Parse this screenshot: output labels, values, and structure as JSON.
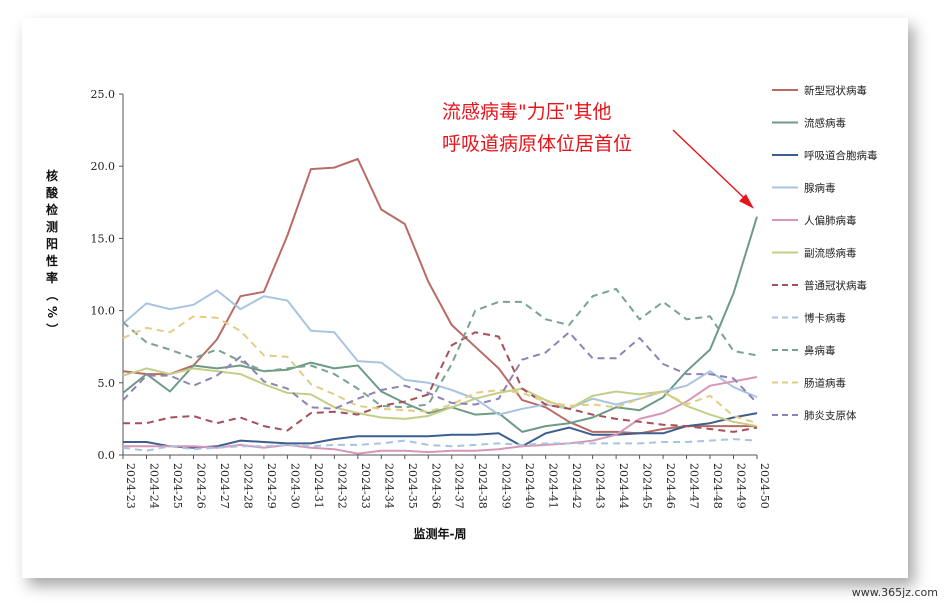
{
  "chart_data": {
    "type": "line",
    "title": "",
    "xlabel": "监测年-周",
    "ylabel": "核酸检测阳性率（%）",
    "ylim": [
      0,
      25
    ],
    "yticks": [
      "0.0",
      "5.0",
      "10.0",
      "15.0",
      "20.0",
      "25.0"
    ],
    "grid": false,
    "legend_position": "right",
    "categories": [
      "2024-23",
      "2024-24",
      "2024-25",
      "2024-26",
      "2024-27",
      "2024-28",
      "2024-29",
      "2024-30",
      "2024-31",
      "2024-32",
      "2024-33",
      "2024-34",
      "2024-35",
      "2024-36",
      "2024-37",
      "2024-38",
      "2024-39",
      "2024-40",
      "2024-41",
      "2024-42",
      "2024-43",
      "2024-44",
      "2024-45",
      "2024-46",
      "2024-47",
      "2024-48",
      "2024-49",
      "2024-50"
    ],
    "series": [
      {
        "name": "新型冠状病毒",
        "color": "#b86b66",
        "dash": false,
        "values": [
          5.8,
          5.6,
          5.6,
          6.2,
          8.0,
          11.0,
          11.3,
          15.2,
          19.8,
          19.9,
          20.5,
          17.0,
          16.0,
          12.0,
          9.0,
          7.5,
          6.0,
          3.8,
          3.3,
          2.3,
          1.6,
          1.6,
          1.5,
          1.8,
          2.0,
          2.0,
          2.0,
          2.0
        ]
      },
      {
        "name": "流感病毒",
        "color": "#6d9b86",
        "dash": false,
        "values": [
          4.3,
          5.6,
          4.4,
          6.2,
          6.0,
          6.2,
          5.8,
          5.9,
          6.4,
          6.0,
          6.2,
          4.4,
          3.6,
          2.9,
          3.3,
          2.8,
          2.9,
          1.6,
          2.0,
          2.2,
          2.6,
          3.3,
          3.1,
          4.0,
          5.8,
          7.3,
          11.2,
          16.5
        ]
      },
      {
        "name": "呼吸道合胞病毒",
        "color": "#3d5f8f",
        "dash": false,
        "values": [
          0.9,
          0.9,
          0.6,
          0.5,
          0.6,
          1.0,
          0.9,
          0.8,
          0.8,
          1.1,
          1.3,
          1.3,
          1.3,
          1.3,
          1.4,
          1.4,
          1.5,
          0.6,
          1.5,
          1.9,
          1.4,
          1.4,
          1.5,
          1.5,
          2.0,
          2.2,
          2.6,
          2.9
        ]
      },
      {
        "name": "腺病毒",
        "color": "#a9c4e0",
        "dash": false,
        "values": [
          9.1,
          10.5,
          10.1,
          10.4,
          11.4,
          10.1,
          11.0,
          10.7,
          8.6,
          8.5,
          6.5,
          6.4,
          5.2,
          5.0,
          4.5,
          3.9,
          2.8,
          3.2,
          3.5,
          3.2,
          3.9,
          3.5,
          3.9,
          4.4,
          4.8,
          5.8,
          4.7,
          4.0
        ]
      },
      {
        "name": "人偏肺病毒",
        "color": "#d796b6",
        "dash": false,
        "values": [
          0.6,
          0.6,
          0.6,
          0.6,
          0.5,
          0.7,
          0.5,
          0.7,
          0.5,
          0.4,
          0.1,
          0.3,
          0.3,
          0.2,
          0.3,
          0.3,
          0.4,
          0.6,
          0.7,
          0.8,
          1.0,
          1.4,
          2.5,
          2.9,
          3.7,
          4.8,
          5.1,
          5.4
        ]
      },
      {
        "name": "副流感病毒",
        "color": "#c3cf86",
        "dash": false,
        "values": [
          5.5,
          6.0,
          5.6,
          6.0,
          5.8,
          5.6,
          4.9,
          4.3,
          4.2,
          3.3,
          2.9,
          2.6,
          2.5,
          2.7,
          3.3,
          3.9,
          4.3,
          4.6,
          3.8,
          3.2,
          4.1,
          4.4,
          4.2,
          4.4,
          3.4,
          2.8,
          2.3,
          2.0
        ]
      },
      {
        "name": "普通冠状病毒",
        "color": "#a5505a",
        "dash": true,
        "values": [
          2.2,
          2.2,
          2.6,
          2.7,
          2.2,
          2.6,
          2.0,
          1.7,
          2.9,
          3.0,
          2.8,
          3.4,
          3.7,
          4.2,
          7.6,
          8.5,
          8.2,
          4.6,
          3.5,
          3.2,
          2.8,
          2.5,
          2.3,
          2.1,
          2.0,
          1.8,
          1.6,
          1.9
        ]
      },
      {
        "name": "博卡病毒",
        "color": "#a9c4e0",
        "dash": true,
        "values": [
          0.5,
          0.3,
          0.6,
          0.4,
          0.5,
          0.6,
          0.6,
          0.7,
          0.6,
          0.7,
          0.7,
          0.8,
          1.0,
          0.7,
          0.6,
          0.7,
          0.8,
          0.7,
          0.8,
          0.8,
          0.8,
          0.8,
          0.8,
          0.9,
          0.9,
          1.0,
          1.1,
          1.0
        ]
      },
      {
        "name": "鼻病毒",
        "color": "#79a291",
        "dash": true,
        "values": [
          9.2,
          7.8,
          7.3,
          6.7,
          7.3,
          6.5,
          5.8,
          6.0,
          6.2,
          5.6,
          4.6,
          3.4,
          3.3,
          3.5,
          6.3,
          10.0,
          10.6,
          10.6,
          9.4,
          9.0,
          11.0,
          11.5,
          9.4,
          10.6,
          9.4,
          9.6,
          7.2,
          6.9
        ]
      },
      {
        "name": "肠道病毒",
        "color": "#e3cc83",
        "dash": true,
        "values": [
          8.1,
          8.8,
          8.5,
          9.6,
          9.5,
          8.6,
          6.9,
          6.8,
          4.9,
          4.2,
          3.4,
          3.2,
          3.1,
          3.0,
          3.5,
          4.3,
          4.5,
          4.3,
          3.7,
          3.4,
          3.5,
          3.3,
          3.9,
          4.4,
          3.5,
          4.1,
          2.7,
          2.2
        ]
      },
      {
        "name": "肺炎支原体",
        "color": "#8f82b4",
        "dash": true,
        "values": [
          3.8,
          5.5,
          5.5,
          4.8,
          5.5,
          6.8,
          5.1,
          4.6,
          3.3,
          3.2,
          3.9,
          4.5,
          4.8,
          4.3,
          3.6,
          3.5,
          3.9,
          6.6,
          7.1,
          8.5,
          6.7,
          6.7,
          8.1,
          6.3,
          5.6,
          5.6,
          5.3,
          3.6
        ]
      }
    ],
    "annotation": {
      "lines": [
        "流感病毒\"力压\"其他",
        "呼吸道病原体位居首位"
      ],
      "color": "#e8141b"
    }
  },
  "watermark": "www.365jz.com"
}
